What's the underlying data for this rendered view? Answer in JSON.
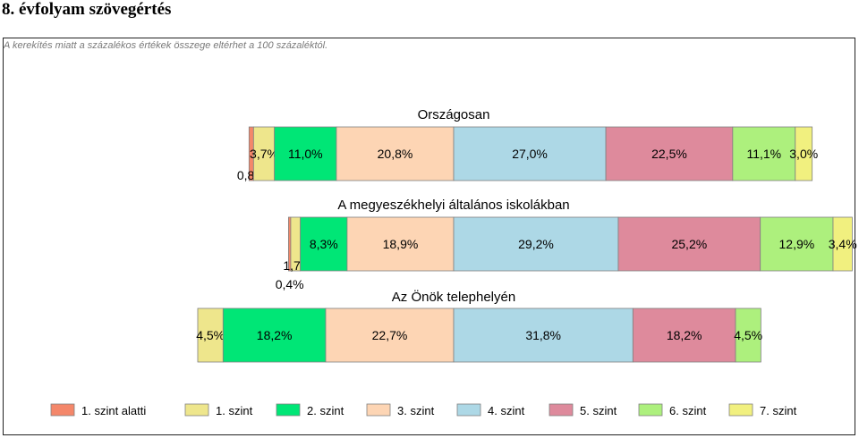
{
  "page": {
    "title": "8. évfolyam szövegértés",
    "note": "A kerekítés miatt a  százalékos értékek összege eltérhet a 100 százaléktól."
  },
  "chart_data": {
    "type": "bar",
    "stacked": true,
    "orientation": "horizontal",
    "levels": [
      "1. szint alatti",
      "1. szint",
      "2. szint",
      "3. szint",
      "4. szint",
      "5. szint",
      "6. szint",
      "7. szint"
    ],
    "colors": [
      "#F4876A",
      "#EEE68C",
      "#00E676",
      "#FDD5B4",
      "#ADD8E6",
      "#DE8A9C",
      "#ADF07D",
      "#F1F07F"
    ],
    "legend_position": "bottom",
    "groups": [
      {
        "name": "Országosan",
        "values": [
          0.8,
          3.7,
          11.0,
          20.8,
          27.0,
          22.5,
          11.1,
          3.0
        ],
        "labels": [
          "0,8%",
          "3,7%",
          "11,0%",
          "20,8%",
          "27,0%",
          "22,5%",
          "11,1%",
          "3,0%"
        ]
      },
      {
        "name": "A megyeszékhelyi általános iskolákban",
        "values": [
          0.4,
          1.7,
          8.3,
          18.9,
          29.2,
          25.2,
          12.9,
          3.4
        ],
        "labels": [
          "0,4%",
          "1,7%",
          "8,3%",
          "18,9%",
          "29,2%",
          "25,2%",
          "12,9%",
          "3,4%"
        ]
      },
      {
        "name": "Az Önök telephelyén",
        "values": [
          0.0,
          4.5,
          18.2,
          22.7,
          31.8,
          18.2,
          4.5,
          0.0
        ],
        "labels": [
          "",
          "4,5%",
          "18,2%",
          "22,7%",
          "31,8%",
          "18,2%",
          "4,5%",
          ""
        ]
      }
    ]
  }
}
